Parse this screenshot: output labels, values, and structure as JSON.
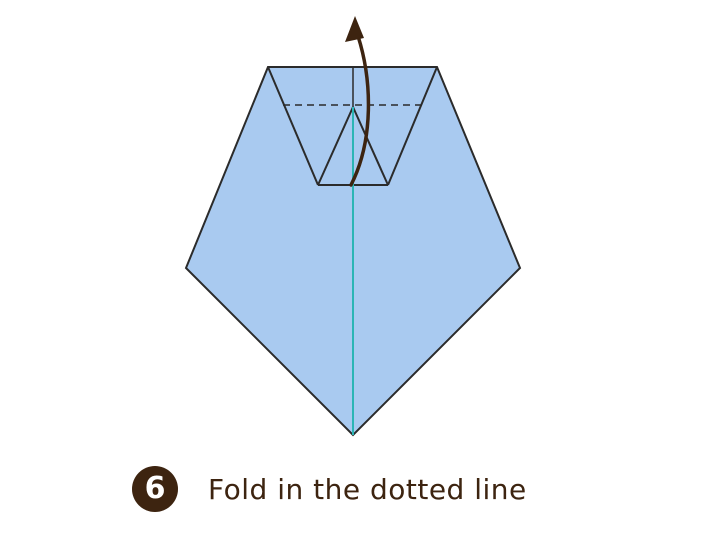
{
  "step": {
    "number": "6",
    "instruction": "Fold in the dotted line"
  },
  "colors": {
    "paper": "#a9caf0",
    "outline": "#2b2b2b",
    "center_line": "#2bb5b5",
    "arrow": "#3d2410",
    "badge": "#3d2410"
  }
}
